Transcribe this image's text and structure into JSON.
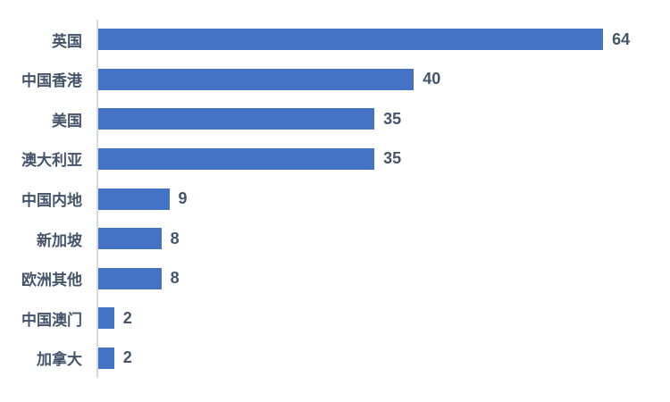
{
  "chart_data": {
    "type": "bar",
    "orientation": "horizontal",
    "title": "",
    "xlabel": "",
    "ylabel": "",
    "categories": [
      "英国",
      "中国香港",
      "美国",
      "澳大利亚",
      "中国内地",
      "新加坡",
      "欧洲其他",
      "中国澳门",
      "加拿大"
    ],
    "values": [
      64,
      40,
      35,
      35,
      9,
      8,
      8,
      2,
      2
    ],
    "data_labels": [
      64,
      40,
      35,
      35,
      9,
      8,
      8,
      2,
      2
    ],
    "xlim": [
      0,
      72
    ],
    "grid": false,
    "legend": false,
    "bar_color": "#4472C4",
    "text_color": "#44546A",
    "axis_line_color": "#D9D9D9",
    "background_color": "#FFFFFF"
  }
}
